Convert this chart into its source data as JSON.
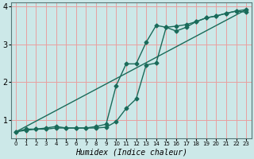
{
  "title": "",
  "xlabel": "Humidex (Indice chaleur)",
  "ylabel": "",
  "xlim": [
    -0.5,
    23.5
  ],
  "ylim": [
    0.5,
    4.1
  ],
  "xticks": [
    0,
    1,
    2,
    3,
    4,
    5,
    6,
    7,
    8,
    9,
    10,
    11,
    12,
    13,
    14,
    15,
    16,
    17,
    18,
    19,
    20,
    21,
    22,
    23
  ],
  "yticks": [
    1,
    2,
    3,
    4
  ],
  "bg_color": "#cce8e8",
  "grid_color": "#e8a0a0",
  "line_color": "#1a6b5a",
  "line1_x": [
    0,
    1,
    2,
    3,
    4,
    5,
    6,
    7,
    8,
    9,
    10,
    11,
    12,
    13,
    14,
    15,
    16,
    17,
    18,
    19,
    20,
    21,
    22,
    23
  ],
  "line1_y": [
    0.68,
    0.75,
    0.75,
    0.78,
    0.82,
    0.78,
    0.78,
    0.78,
    0.78,
    0.8,
    0.95,
    1.3,
    1.55,
    2.45,
    2.5,
    3.45,
    3.35,
    3.45,
    3.6,
    3.7,
    3.75,
    3.82,
    3.88,
    3.85
  ],
  "line2_x": [
    0,
    1,
    2,
    3,
    4,
    5,
    6,
    7,
    8,
    9,
    10,
    11,
    12,
    13,
    14,
    15,
    16,
    17,
    18,
    19,
    20,
    21,
    22,
    23
  ],
  "line2_y": [
    0.68,
    0.72,
    0.75,
    0.75,
    0.78,
    0.78,
    0.78,
    0.78,
    0.82,
    0.88,
    1.9,
    2.48,
    2.48,
    3.05,
    3.5,
    3.45,
    3.48,
    3.52,
    3.6,
    3.7,
    3.75,
    3.82,
    3.88,
    3.92
  ],
  "line3_x": [
    0,
    23
  ],
  "line3_y": [
    0.68,
    3.92
  ],
  "marker": "D",
  "markersize": 2.5,
  "linewidth": 1.0
}
